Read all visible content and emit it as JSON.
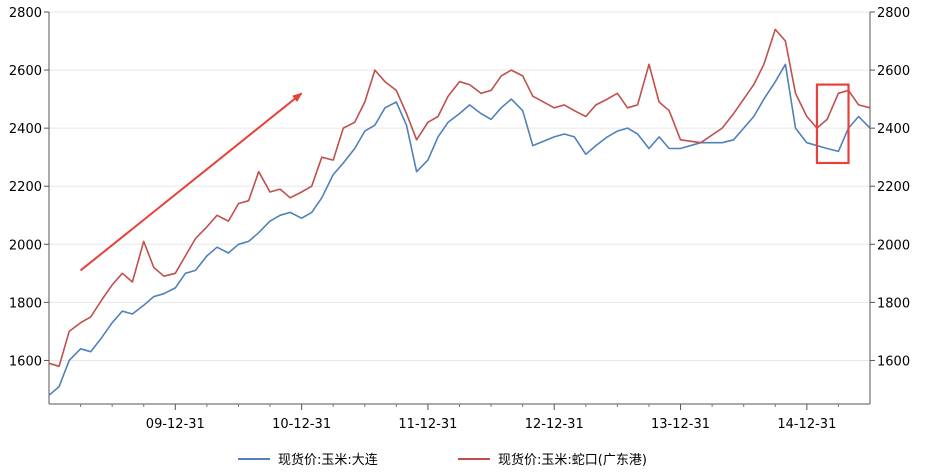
{
  "chart_data": {
    "type": "line",
    "title": "",
    "xlabel": "",
    "ylabel": "",
    "ylim": [
      1450,
      2800
    ],
    "yticks": [
      1600,
      1800,
      2000,
      2200,
      2400,
      2600,
      2800
    ],
    "ytick_labels": [
      "1600",
      "1800",
      "2000",
      "2200",
      "2400",
      "2600",
      "2800"
    ],
    "xticks": [
      {
        "x": 2009.0,
        "label": "09-12-31"
      },
      {
        "x": 2010.0,
        "label": "10-12-31"
      },
      {
        "x": 2011.0,
        "label": "11-12-31"
      },
      {
        "x": 2012.0,
        "label": "12-12-31"
      },
      {
        "x": 2013.0,
        "label": "13-12-31"
      },
      {
        "x": 2014.0,
        "label": "14-12-31"
      }
    ],
    "xlim": [
      2008.0,
      2014.5
    ],
    "grid": true,
    "legend_position": "bottom",
    "dual_axis": true,
    "series": [
      {
        "name": "现货价:玉米:大连",
        "color": "#4f81bd",
        "points": [
          [
            2008.0,
            1480
          ],
          [
            2008.08,
            1510
          ],
          [
            2008.16,
            1600
          ],
          [
            2008.25,
            1640
          ],
          [
            2008.33,
            1630
          ],
          [
            2008.42,
            1680
          ],
          [
            2008.5,
            1730
          ],
          [
            2008.58,
            1770
          ],
          [
            2008.66,
            1760
          ],
          [
            2008.75,
            1790
          ],
          [
            2008.83,
            1820
          ],
          [
            2008.91,
            1830
          ],
          [
            2009.0,
            1850
          ],
          [
            2009.08,
            1900
          ],
          [
            2009.16,
            1910
          ],
          [
            2009.25,
            1960
          ],
          [
            2009.33,
            1990
          ],
          [
            2009.42,
            1970
          ],
          [
            2009.5,
            2000
          ],
          [
            2009.58,
            2010
          ],
          [
            2009.66,
            2040
          ],
          [
            2009.75,
            2080
          ],
          [
            2009.83,
            2100
          ],
          [
            2009.91,
            2110
          ],
          [
            2010.0,
            2090
          ],
          [
            2010.08,
            2110
          ],
          [
            2010.16,
            2160
          ],
          [
            2010.25,
            2240
          ],
          [
            2010.33,
            2280
          ],
          [
            2010.42,
            2330
          ],
          [
            2010.5,
            2390
          ],
          [
            2010.58,
            2410
          ],
          [
            2010.66,
            2470
          ],
          [
            2010.75,
            2490
          ],
          [
            2010.83,
            2410
          ],
          [
            2010.91,
            2250
          ],
          [
            2011.0,
            2290
          ],
          [
            2011.08,
            2370
          ],
          [
            2011.16,
            2420
          ],
          [
            2011.25,
            2450
          ],
          [
            2011.33,
            2480
          ],
          [
            2011.42,
            2450
          ],
          [
            2011.5,
            2430
          ],
          [
            2011.58,
            2470
          ],
          [
            2011.66,
            2500
          ],
          [
            2011.75,
            2460
          ],
          [
            2011.83,
            2340
          ],
          [
            2012.0,
            2370
          ],
          [
            2012.08,
            2380
          ],
          [
            2012.16,
            2370
          ],
          [
            2012.25,
            2310
          ],
          [
            2012.33,
            2340
          ],
          [
            2012.42,
            2370
          ],
          [
            2012.5,
            2390
          ],
          [
            2012.58,
            2400
          ],
          [
            2012.66,
            2380
          ],
          [
            2012.75,
            2330
          ],
          [
            2012.83,
            2370
          ],
          [
            2012.91,
            2330
          ],
          [
            2013.0,
            2330
          ],
          [
            2013.16,
            2350
          ],
          [
            2013.33,
            2350
          ],
          [
            2013.42,
            2360
          ],
          [
            2013.5,
            2400
          ],
          [
            2013.58,
            2440
          ],
          [
            2013.66,
            2500
          ],
          [
            2013.75,
            2560
          ],
          [
            2013.83,
            2620
          ],
          [
            2013.91,
            2400
          ],
          [
            2014.0,
            2350
          ],
          [
            2014.16,
            2330
          ],
          [
            2014.25,
            2320
          ],
          [
            2014.33,
            2400
          ],
          [
            2014.41,
            2440
          ],
          [
            2014.5,
            2400
          ]
        ]
      },
      {
        "name": "现货价:玉米:蛇口(广东港)",
        "color": "#c0504d",
        "points": [
          [
            2008.0,
            1590
          ],
          [
            2008.08,
            1580
          ],
          [
            2008.16,
            1700
          ],
          [
            2008.25,
            1730
          ],
          [
            2008.33,
            1750
          ],
          [
            2008.42,
            1810
          ],
          [
            2008.5,
            1860
          ],
          [
            2008.58,
            1900
          ],
          [
            2008.66,
            1870
          ],
          [
            2008.75,
            2010
          ],
          [
            2008.83,
            1920
          ],
          [
            2008.91,
            1890
          ],
          [
            2009.0,
            1900
          ],
          [
            2009.08,
            1960
          ],
          [
            2009.16,
            2020
          ],
          [
            2009.25,
            2060
          ],
          [
            2009.33,
            2100
          ],
          [
            2009.42,
            2080
          ],
          [
            2009.5,
            2140
          ],
          [
            2009.58,
            2150
          ],
          [
            2009.66,
            2250
          ],
          [
            2009.75,
            2180
          ],
          [
            2009.83,
            2190
          ],
          [
            2009.91,
            2160
          ],
          [
            2010.0,
            2180
          ],
          [
            2010.08,
            2200
          ],
          [
            2010.16,
            2300
          ],
          [
            2010.25,
            2290
          ],
          [
            2010.33,
            2400
          ],
          [
            2010.42,
            2420
          ],
          [
            2010.5,
            2490
          ],
          [
            2010.58,
            2600
          ],
          [
            2010.66,
            2560
          ],
          [
            2010.75,
            2530
          ],
          [
            2010.83,
            2450
          ],
          [
            2010.91,
            2360
          ],
          [
            2011.0,
            2420
          ],
          [
            2011.08,
            2440
          ],
          [
            2011.16,
            2510
          ],
          [
            2011.25,
            2560
          ],
          [
            2011.33,
            2550
          ],
          [
            2011.42,
            2520
          ],
          [
            2011.5,
            2530
          ],
          [
            2011.58,
            2580
          ],
          [
            2011.66,
            2600
          ],
          [
            2011.75,
            2580
          ],
          [
            2011.83,
            2510
          ],
          [
            2012.0,
            2470
          ],
          [
            2012.08,
            2480
          ],
          [
            2012.16,
            2460
          ],
          [
            2012.25,
            2440
          ],
          [
            2012.33,
            2480
          ],
          [
            2012.42,
            2500
          ],
          [
            2012.5,
            2520
          ],
          [
            2012.58,
            2470
          ],
          [
            2012.66,
            2480
          ],
          [
            2012.75,
            2620
          ],
          [
            2012.83,
            2490
          ],
          [
            2012.91,
            2460
          ],
          [
            2013.0,
            2360
          ],
          [
            2013.16,
            2350
          ],
          [
            2013.33,
            2400
          ],
          [
            2013.42,
            2450
          ],
          [
            2013.5,
            2500
          ],
          [
            2013.58,
            2550
          ],
          [
            2013.66,
            2620
          ],
          [
            2013.75,
            2740
          ],
          [
            2013.83,
            2700
          ],
          [
            2013.91,
            2520
          ],
          [
            2014.0,
            2440
          ],
          [
            2014.08,
            2400
          ],
          [
            2014.16,
            2430
          ],
          [
            2014.25,
            2520
          ],
          [
            2014.33,
            2530
          ],
          [
            2014.41,
            2480
          ],
          [
            2014.5,
            2470
          ]
        ]
      }
    ],
    "annotations": [
      {
        "type": "arrow",
        "color": "#e8413c",
        "from": [
          2008.25,
          1910
        ],
        "to": [
          2010.0,
          2520
        ]
      },
      {
        "type": "box",
        "color": "#e8413c",
        "x_range": [
          2014.08,
          2014.33
        ],
        "y_range": [
          2280,
          2550
        ]
      }
    ]
  }
}
